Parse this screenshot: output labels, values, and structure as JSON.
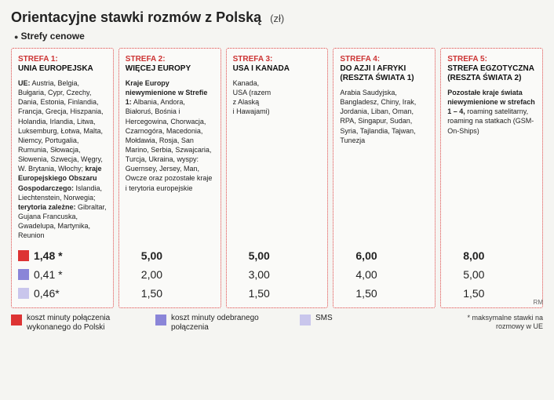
{
  "title": "Orientacyjne stawki rozmów z Polską",
  "unit": "(zł)",
  "subtitle": "Strefy cenowe",
  "colors": {
    "red": "#d33",
    "purple": "#8a85d8",
    "light": "#c9c6ec",
    "border": "#d44"
  },
  "zones": [
    {
      "head": "STREFA 1:",
      "sub": "UNIA EUROPEJSKA",
      "body_html": "<b>UE:</b> Austria, Belgia, Bułgaria, Cypr, Czechy, Dania, Estonia, Finlandia, Francja, Grecja, Hiszpania, Holandia, Irlandia, Litwa, Luksemburg, Łotwa, Malta, Niemcy, Portugalia, Rumunia, Słowacja, Słowenia, Szwecja, Węgry, W. Brytania, Włochy; <b>kraje Europejskiego Obszaru Gospodarczego:</b> Islandia, Liechtenstein, Norwegia; <b>terytoria zależne:</b> Gibraltar, Gujana Francuska, Gwadelupa, Martynika, Reunion",
      "prices": [
        "1,48 *",
        "0,41 *",
        "0,46*"
      ]
    },
    {
      "head": "STREFA 2:",
      "sub": "WIĘCEJ EUROPY",
      "body_html": "<b>Kraje Europy niewymienione w Strefie 1:</b> Albania, Andora, Białoruś, Bośnia i Hercegowina, Chorwacja, Czarnogóra, Macedonia, Mołdawia, Rosja, San Marino, Serbia, Szwajcaria, Turcja, Ukraina, wyspy: Guernsey, Jersey, Man, Owcze oraz pozostałe kraje i terytoria europejskie",
      "prices": [
        "5,00",
        "2,00",
        "1,50"
      ]
    },
    {
      "head": "STREFA 3:",
      "sub": "USA I KANADA",
      "body_html": "Kanada,<br>USA (razem<br>z Alaską<br>i Hawajami)",
      "prices": [
        "5,00",
        "3,00",
        "1,50"
      ]
    },
    {
      "head": "STREFA 4:",
      "sub": "DO AZJI I AFRYKI (RESZTA ŚWIATA 1)",
      "body_html": "Arabia Saudyjska, Bangladesz, Chiny, Irak, Jordania, Liban, Oman, RPA, Singapur, Sudan, Syria, Tajlandia, Tajwan, Tunezja",
      "prices": [
        "6,00",
        "4,00",
        "1,50"
      ]
    },
    {
      "head": "STREFA 5:",
      "sub": "STREFA EGZOTYCZNA (RESZTA ŚWIATA 2)",
      "body_html": "<b>Pozostałe kraje świata niewymienione w strefach 1 – 4,</b> roaming satelitarny, roaming na statkach (GSM-On-Ships)",
      "prices": [
        "8,00",
        "5,00",
        "1,50"
      ]
    }
  ],
  "legend": [
    {
      "color": "red",
      "text": "koszt minuty połączenia wykonanego do Polski"
    },
    {
      "color": "purple",
      "text": "koszt minuty odebranego połączenia"
    },
    {
      "color": "light",
      "text": "SMS"
    }
  ],
  "footnote": "* maksymalne stawki na rozmowy w UE",
  "credit": "RM"
}
